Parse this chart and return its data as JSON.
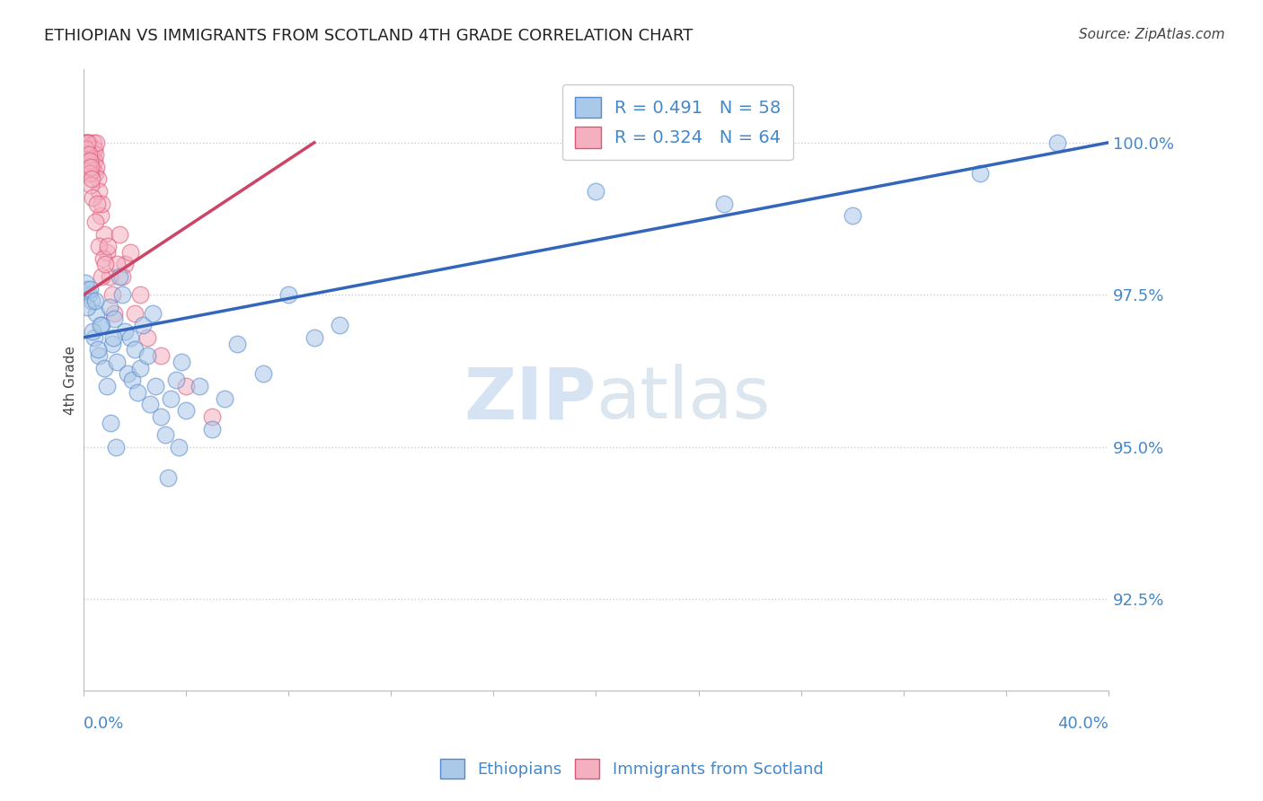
{
  "title": "ETHIOPIAN VS IMMIGRANTS FROM SCOTLAND 4TH GRADE CORRELATION CHART",
  "source": "Source: ZipAtlas.com",
  "ylabel": "4th Grade",
  "ylabel_right_ticks": [
    92.5,
    95.0,
    97.5,
    100.0
  ],
  "ylabel_right_labels": [
    "92.5%",
    "95.0%",
    "97.5%",
    "100.0%"
  ],
  "xmin": 0.0,
  "xmax": 40.0,
  "ymin": 91.0,
  "ymax": 101.2,
  "blue_R": 0.491,
  "blue_N": 58,
  "pink_R": 0.324,
  "pink_N": 64,
  "blue_color": "#aac8e8",
  "pink_color": "#f5b0c0",
  "blue_edge_color": "#5588cc",
  "pink_edge_color": "#dd5577",
  "blue_line_color": "#3366bb",
  "pink_line_color": "#cc4466",
  "axis_color": "#4488cc",
  "title_color": "#222222",
  "watermark_color": "#ddeeff",
  "blue_scatter_x": [
    0.1,
    0.2,
    0.3,
    0.4,
    0.5,
    0.6,
    0.7,
    0.8,
    0.9,
    1.0,
    1.1,
    1.2,
    1.3,
    1.4,
    1.5,
    1.6,
    1.7,
    1.8,
    1.9,
    2.0,
    2.1,
    2.2,
    2.3,
    2.5,
    2.6,
    2.7,
    2.8,
    3.0,
    3.2,
    3.4,
    3.6,
    3.8,
    4.0,
    4.5,
    5.0,
    5.5,
    6.0,
    7.0,
    8.0,
    9.0,
    10.0,
    0.05,
    0.15,
    0.25,
    0.35,
    0.45,
    0.55,
    0.65,
    1.05,
    1.15,
    1.25,
    20.0,
    25.0,
    30.0,
    35.0,
    38.0,
    3.3,
    3.7
  ],
  "blue_scatter_y": [
    97.6,
    97.5,
    97.4,
    96.8,
    97.2,
    96.5,
    97.0,
    96.3,
    96.0,
    97.3,
    96.7,
    97.1,
    96.4,
    97.8,
    97.5,
    96.9,
    96.2,
    96.8,
    96.1,
    96.6,
    95.9,
    96.3,
    97.0,
    96.5,
    95.7,
    97.2,
    96.0,
    95.5,
    95.2,
    95.8,
    96.1,
    96.4,
    95.6,
    96.0,
    95.3,
    95.8,
    96.7,
    96.2,
    97.5,
    96.8,
    97.0,
    97.7,
    97.3,
    97.6,
    96.9,
    97.4,
    96.6,
    97.0,
    95.4,
    96.8,
    95.0,
    99.2,
    99.0,
    98.8,
    99.5,
    100.0,
    94.5,
    95.0
  ],
  "pink_scatter_x": [
    0.05,
    0.08,
    0.1,
    0.12,
    0.14,
    0.16,
    0.18,
    0.2,
    0.22,
    0.24,
    0.26,
    0.28,
    0.3,
    0.32,
    0.34,
    0.36,
    0.38,
    0.4,
    0.42,
    0.44,
    0.46,
    0.48,
    0.5,
    0.55,
    0.6,
    0.65,
    0.7,
    0.8,
    0.9,
    1.0,
    1.1,
    1.2,
    1.4,
    1.6,
    1.8,
    0.06,
    0.09,
    0.11,
    0.13,
    0.15,
    0.17,
    0.19,
    0.21,
    0.23,
    0.25,
    0.27,
    0.29,
    0.31,
    0.35,
    0.45,
    0.52,
    0.58,
    0.68,
    0.75,
    2.0,
    2.5,
    3.0,
    4.0,
    5.0,
    2.2,
    1.5,
    1.3,
    0.85,
    0.95
  ],
  "pink_scatter_y": [
    100.0,
    99.8,
    99.9,
    100.0,
    100.0,
    99.7,
    99.8,
    99.9,
    100.0,
    99.6,
    99.8,
    99.7,
    99.5,
    99.9,
    99.6,
    99.8,
    100.0,
    99.7,
    99.9,
    99.5,
    99.8,
    100.0,
    99.6,
    99.4,
    99.2,
    98.8,
    99.0,
    98.5,
    98.2,
    97.8,
    97.5,
    97.2,
    98.5,
    98.0,
    98.2,
    99.9,
    99.8,
    99.9,
    100.0,
    99.7,
    99.6,
    99.5,
    99.8,
    99.7,
    99.5,
    99.6,
    99.3,
    99.4,
    99.1,
    98.7,
    99.0,
    98.3,
    97.8,
    98.1,
    97.2,
    96.8,
    96.5,
    96.0,
    95.5,
    97.5,
    97.8,
    98.0,
    98.0,
    98.3
  ],
  "blue_line_x0": 0.0,
  "blue_line_y0": 96.8,
  "blue_line_x1": 40.0,
  "blue_line_y1": 100.0,
  "pink_line_x0": 0.0,
  "pink_line_y0": 97.5,
  "pink_line_x1": 9.0,
  "pink_line_y1": 100.0
}
